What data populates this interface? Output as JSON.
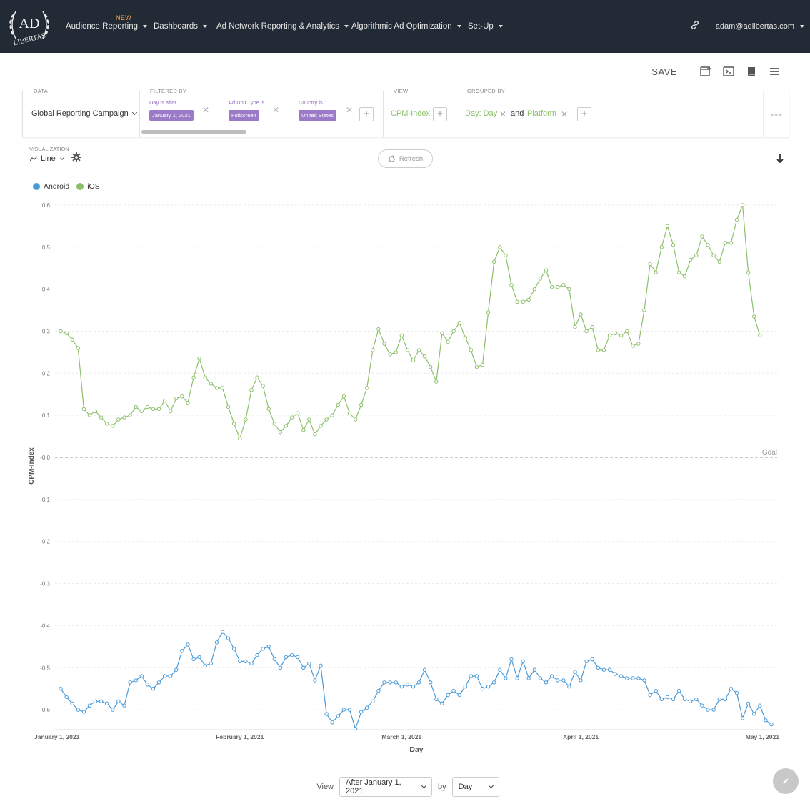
{
  "nav": {
    "items": [
      {
        "label": "Audience Reporting"
      },
      {
        "label": "Dashboards"
      },
      {
        "label": "Ad Network Reporting & Analytics"
      },
      {
        "label": "Algorithmic Ad Optimization"
      },
      {
        "label": "Set-Up"
      }
    ],
    "new_badge": "NEW",
    "user_email": "adam@adlibertas.com",
    "logo_text_top": "AD",
    "logo_text_bottom": "LIBERTAS"
  },
  "toolbar": {
    "save_label": "SAVE"
  },
  "query": {
    "data_label": "DATA",
    "campaign": "Global Reporting Campaign",
    "filtered_label": "FILTERED BY",
    "filters": [
      {
        "label": "Day is after",
        "value": "January 1, 2021"
      },
      {
        "label": "Ad Unit Type is",
        "value": "Fullscreen"
      },
      {
        "label": "Country is",
        "value": "United States"
      }
    ],
    "view_label": "VIEW",
    "view_value": "CPM-Index",
    "grouped_label": "GROUPED BY",
    "group_1": "Day: Day",
    "group_and": "and",
    "group_2": "Platform"
  },
  "visualization": {
    "label": "VISUALIZATION",
    "type": "Line",
    "refresh_label": "Refresh"
  },
  "bottom": {
    "view_label": "View",
    "range_value": "After January 1, 2021",
    "by_label": "by",
    "granularity": "Day"
  },
  "chart_data": {
    "type": "line",
    "xlabel": "Day",
    "ylabel": "CPM-Index",
    "x_start": "2021-01-01",
    "x_ticks": [
      "January 1, 2021",
      "February 1, 2021",
      "March 1, 2021",
      "April 1, 2021",
      "May 1, 2021"
    ],
    "x_tick_days": [
      0,
      31,
      59,
      90,
      120
    ],
    "y_ticks": [
      "0.6",
      "0.5",
      "0.4",
      "0.3",
      "0.2",
      "0.1",
      "-0.0",
      "-0.1",
      "-0.2",
      "-0.3",
      "-0.4",
      "-0.5",
      "-0.6"
    ],
    "ylim": [
      -0.65,
      0.6
    ],
    "grid": true,
    "legend_position": "top-left",
    "goal": {
      "label": "Goal",
      "value": 0
    },
    "series": [
      {
        "name": "Android",
        "color": "#4a9ad8",
        "values": [
          -0.55,
          -0.57,
          -0.585,
          -0.6,
          -0.605,
          -0.59,
          -0.58,
          -0.58,
          -0.585,
          -0.6,
          -0.58,
          -0.59,
          -0.535,
          -0.53,
          -0.52,
          -0.54,
          -0.55,
          -0.535,
          -0.52,
          -0.52,
          -0.505,
          -0.46,
          -0.445,
          -0.48,
          -0.475,
          -0.495,
          -0.49,
          -0.44,
          -0.415,
          -0.43,
          -0.455,
          -0.485,
          -0.485,
          -0.49,
          -0.47,
          -0.455,
          -0.45,
          -0.48,
          -0.5,
          -0.475,
          -0.47,
          -0.475,
          -0.5,
          -0.49,
          -0.53,
          -0.495,
          -0.61,
          -0.63,
          -0.615,
          -0.6,
          -0.6,
          -0.645,
          -0.605,
          -0.595,
          -0.58,
          -0.555,
          -0.535,
          -0.535,
          -0.535,
          -0.545,
          -0.54,
          -0.545,
          -0.535,
          -0.505,
          -0.535,
          -0.575,
          -0.585,
          -0.565,
          -0.555,
          -0.565,
          -0.545,
          -0.52,
          -0.52,
          -0.55,
          -0.545,
          -0.535,
          -0.505,
          -0.525,
          -0.48,
          -0.525,
          -0.485,
          -0.525,
          -0.505,
          -0.525,
          -0.535,
          -0.52,
          -0.53,
          -0.53,
          -0.545,
          -0.51,
          -0.53,
          -0.485,
          -0.48,
          -0.5,
          -0.505,
          -0.505,
          -0.515,
          -0.52,
          -0.525,
          -0.525,
          -0.525,
          -0.53,
          -0.565,
          -0.555,
          -0.575,
          -0.57,
          -0.575,
          -0.555,
          -0.575,
          -0.58,
          -0.575,
          -0.59,
          -0.6,
          -0.6,
          -0.575,
          -0.575,
          -0.55,
          -0.56,
          -0.62,
          -0.585,
          -0.61,
          -0.59,
          -0.625,
          -0.635
        ]
      },
      {
        "name": "iOS",
        "color": "#8dc06a",
        "values": [
          0.3,
          0.295,
          0.28,
          0.26,
          0.115,
          0.1,
          0.11,
          0.095,
          0.08,
          0.075,
          0.09,
          0.095,
          0.1,
          0.12,
          0.11,
          0.12,
          0.115,
          0.115,
          0.135,
          0.11,
          0.14,
          0.145,
          0.13,
          0.19,
          0.235,
          0.19,
          0.175,
          0.165,
          0.165,
          0.12,
          0.08,
          0.045,
          0.09,
          0.16,
          0.19,
          0.17,
          0.115,
          0.08,
          0.06,
          0.075,
          0.095,
          0.105,
          0.065,
          0.09,
          0.055,
          0.075,
          0.09,
          0.1,
          0.125,
          0.145,
          0.105,
          0.09,
          0.125,
          0.165,
          0.255,
          0.305,
          0.27,
          0.245,
          0.25,
          0.29,
          0.255,
          0.23,
          0.255,
          0.24,
          0.215,
          0.18,
          0.295,
          0.275,
          0.3,
          0.32,
          0.285,
          0.255,
          0.215,
          0.22,
          0.345,
          0.465,
          0.5,
          0.48,
          0.41,
          0.37,
          0.37,
          0.375,
          0.4,
          0.425,
          0.445,
          0.405,
          0.405,
          0.41,
          0.4,
          0.31,
          0.34,
          0.3,
          0.31,
          0.255,
          0.255,
          0.29,
          0.295,
          0.29,
          0.3,
          0.265,
          0.27,
          0.35,
          0.46,
          0.44,
          0.5,
          0.55,
          0.505,
          0.44,
          0.43,
          0.47,
          0.48,
          0.525,
          0.505,
          0.48,
          0.465,
          0.51,
          0.51,
          0.565,
          0.6,
          0.44,
          0.335,
          0.29
        ]
      }
    ]
  }
}
